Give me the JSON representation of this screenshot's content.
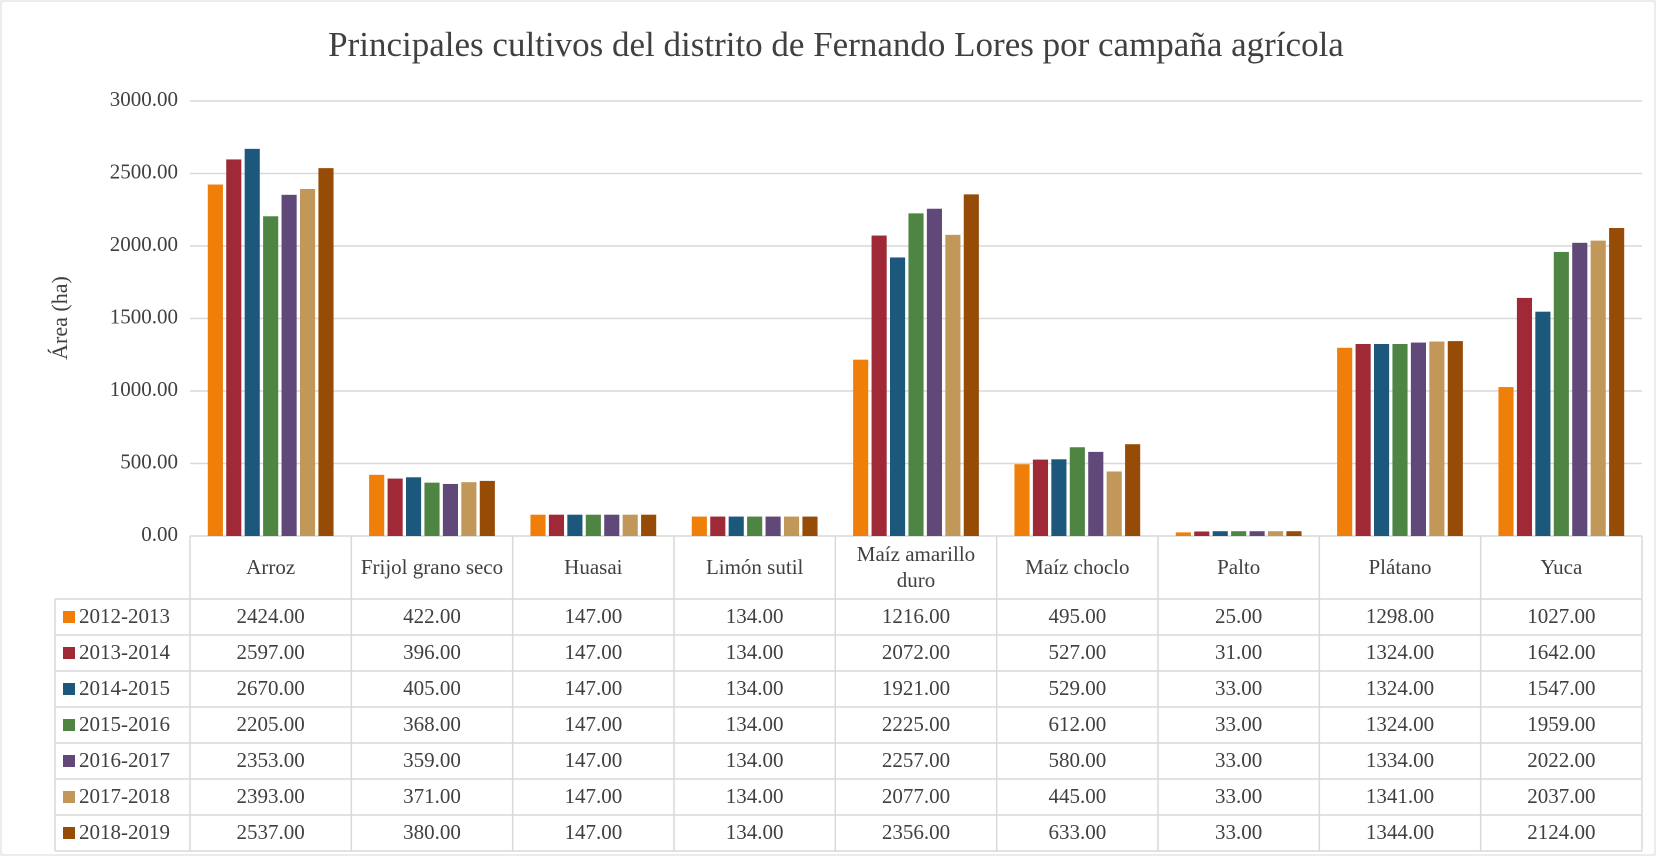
{
  "chart_data": {
    "type": "bar",
    "title": "Principales cultivos del distrito de Fernando Lores por campaña agrícola",
    "y_label": "Área (ha)",
    "categories": [
      "Arroz",
      "Frijol grano seco",
      "Huasai",
      "Limón sutil",
      "Maíz amarillo duro",
      "Maíz choclo",
      "Palto",
      "Plátano",
      "Yuca"
    ],
    "ylim": [
      0,
      3000
    ],
    "yticks": [
      {
        "value": 0,
        "label": "0.00"
      },
      {
        "value": 500,
        "label": "500.00"
      },
      {
        "value": 1000,
        "label": "1000.00"
      },
      {
        "value": 1500,
        "label": "1500.00"
      },
      {
        "value": 2000,
        "label": "2000.00"
      },
      {
        "value": 2500,
        "label": "2500.00"
      },
      {
        "value": 3000,
        "label": "3000.00"
      }
    ],
    "grid": true,
    "series": [
      {
        "name": "2012-2013",
        "color": "#f07f09",
        "values": [
          2424,
          422,
          147,
          134,
          1216,
          495,
          25,
          1298,
          1027
        ],
        "value_labels": [
          "2424.00",
          "422.00",
          "147.00",
          "134.00",
          "1216.00",
          "495.00",
          "25.00",
          "1298.00",
          "1027.00"
        ]
      },
      {
        "name": "2013-2014",
        "color": "#9f2936",
        "values": [
          2597,
          396,
          147,
          134,
          2072,
          527,
          31,
          1324,
          1642
        ],
        "value_labels": [
          "2597.00",
          "396.00",
          "147.00",
          "134.00",
          "2072.00",
          "527.00",
          "31.00",
          "1324.00",
          "1642.00"
        ]
      },
      {
        "name": "2014-2015",
        "color": "#1b587c",
        "values": [
          2670,
          405,
          147,
          134,
          1921,
          529,
          33,
          1324,
          1547
        ],
        "value_labels": [
          "2670.00",
          "405.00",
          "147.00",
          "134.00",
          "1921.00",
          "529.00",
          "33.00",
          "1324.00",
          "1547.00"
        ]
      },
      {
        "name": "2015-2016",
        "color": "#4e8542",
        "values": [
          2205,
          368,
          147,
          134,
          2225,
          612,
          33,
          1324,
          1959
        ],
        "value_labels": [
          "2205.00",
          "368.00",
          "147.00",
          "134.00",
          "2225.00",
          "612.00",
          "33.00",
          "1324.00",
          "1959.00"
        ]
      },
      {
        "name": "2016-2017",
        "color": "#604878",
        "values": [
          2353,
          359,
          147,
          134,
          2257,
          580,
          33,
          1334,
          2022
        ],
        "value_labels": [
          "2353.00",
          "359.00",
          "147.00",
          "134.00",
          "2257.00",
          "580.00",
          "33.00",
          "1334.00",
          "2022.00"
        ]
      },
      {
        "name": "2017-2018",
        "color": "#c19859",
        "values": [
          2393,
          371,
          147,
          134,
          2077,
          445,
          33,
          1341,
          2037
        ],
        "value_labels": [
          "2393.00",
          "371.00",
          "147.00",
          "134.00",
          "2077.00",
          "445.00",
          "33.00",
          "1341.00",
          "2037.00"
        ]
      },
      {
        "name": "2018-2019",
        "color": "#964b06",
        "values": [
          2537,
          380,
          147,
          134,
          2356,
          633,
          33,
          1344,
          2124
        ],
        "value_labels": [
          "2537.00",
          "380.00",
          "147.00",
          "134.00",
          "2356.00",
          "633.00",
          "33.00",
          "1344.00",
          "2124.00"
        ]
      }
    ]
  }
}
